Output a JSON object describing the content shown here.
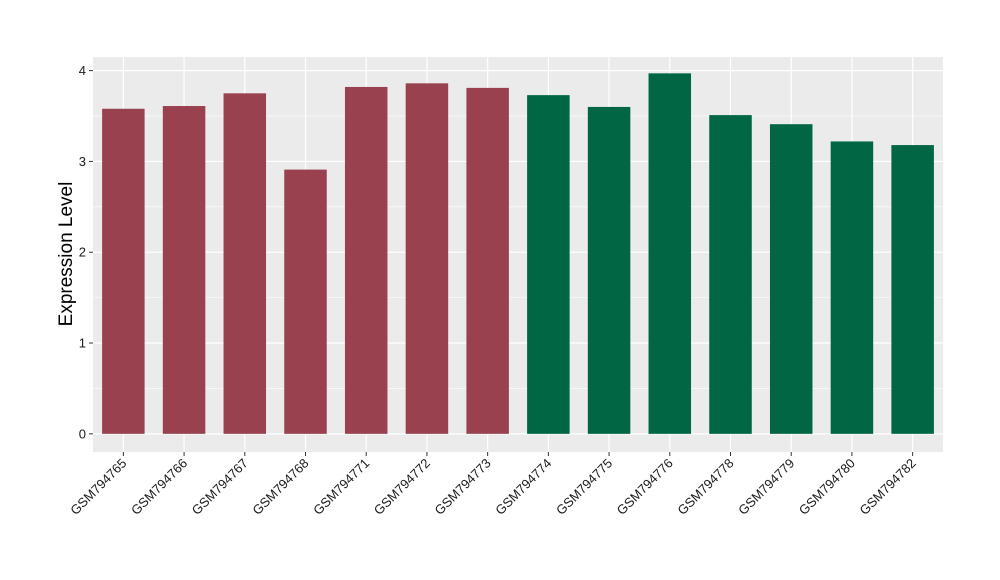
{
  "chart_data": {
    "type": "bar",
    "title": "",
    "xlabel": "",
    "ylabel": "Expression Level",
    "ylim": [
      -0.2,
      4.15
    ],
    "yticks": [
      0,
      1,
      2,
      3,
      4
    ],
    "grid": true,
    "background": "#ebebeb",
    "categories": [
      "GSM794765",
      "GSM794766",
      "GSM794767",
      "GSM794768",
      "GSM794771",
      "GSM794772",
      "GSM794773",
      "GSM794774",
      "GSM794775",
      "GSM794776",
      "GSM794778",
      "GSM794779",
      "GSM794780",
      "GSM794782"
    ],
    "values": [
      3.58,
      3.61,
      3.75,
      2.91,
      3.82,
      3.86,
      3.81,
      3.73,
      3.6,
      3.97,
      3.51,
      3.41,
      3.22,
      3.18
    ],
    "bar_colors": [
      "#99414f",
      "#99414f",
      "#99414f",
      "#99414f",
      "#99414f",
      "#99414f",
      "#99414f",
      "#006644",
      "#006644",
      "#006644",
      "#006644",
      "#006644",
      "#006644",
      "#006644"
    ]
  }
}
